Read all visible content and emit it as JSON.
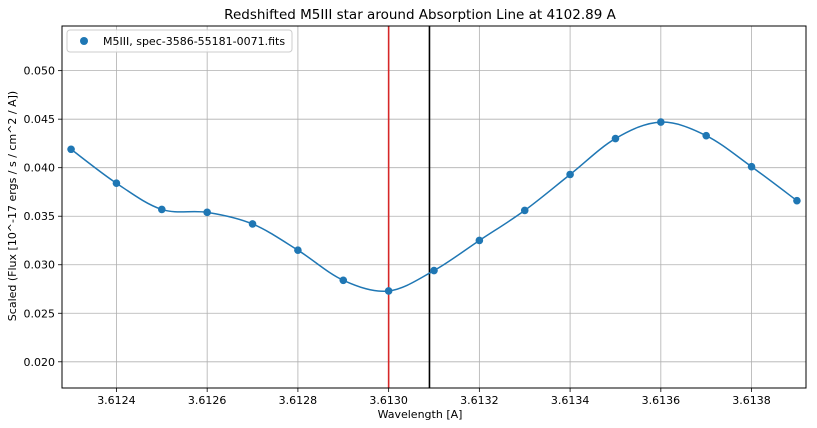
{
  "chart_data": {
    "type": "scatter",
    "title": "Redshifted M5III star around Absorption Line at 4102.89 A",
    "xlabel": "Wavelength [A]",
    "ylabel": "Scaled (Flux [10^-17 ergs / s / cm^2 / A])",
    "xlim": [
      3.61228,
      3.61392
    ],
    "ylim": [
      0.0173,
      0.0546
    ],
    "xticks": [
      3.6124,
      3.6126,
      3.6128,
      3.613,
      3.6132,
      3.6134,
      3.6136,
      3.6138
    ],
    "xtick_labels": [
      "3.6124",
      "3.6126",
      "3.6128",
      "3.6130",
      "3.6132",
      "3.6134",
      "3.6136",
      "3.6138"
    ],
    "yticks": [
      0.02,
      0.025,
      0.03,
      0.035,
      0.04,
      0.045,
      0.05
    ],
    "ytick_labels": [
      "0.020",
      "0.025",
      "0.030",
      "0.035",
      "0.040",
      "0.045",
      "0.050"
    ],
    "grid": true,
    "legend_position": "top-left",
    "series": [
      {
        "name": "M5III, spec-3586-55181-0071.fits",
        "color": "#1f77b4",
        "marker": "circle",
        "x": [
          3.6123,
          3.6124,
          3.6125,
          3.6126,
          3.6127,
          3.6128,
          3.6129,
          3.613,
          3.6131,
          3.6132,
          3.6133,
          3.6134,
          3.6135,
          3.6136,
          3.6137,
          3.6138,
          3.6139
        ],
        "y": [
          0.0419,
          0.0384,
          0.0357,
          0.0354,
          0.0342,
          0.0315,
          0.0284,
          0.0273,
          0.0294,
          0.0325,
          0.0356,
          0.0393,
          0.043,
          0.0447,
          0.0433,
          0.0401,
          0.0366
        ]
      }
    ],
    "smooth_curve": {
      "color": "#1f77b4"
    },
    "vertical_lines": [
      {
        "x": 3.613,
        "color": "#d62728"
      },
      {
        "x": 3.61309,
        "color": "#000000"
      }
    ]
  }
}
